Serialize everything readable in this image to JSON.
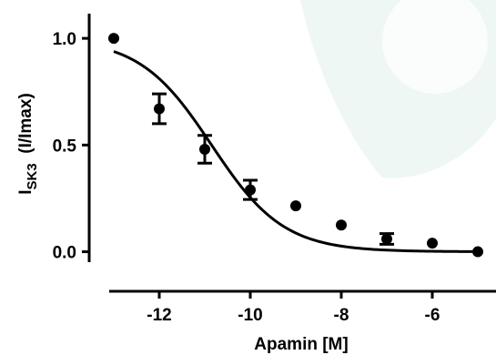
{
  "chart_data": {
    "type": "scatter",
    "xlabel": "Apamin [M]",
    "ylabel": "I",
    "ylabel_sub": "SK3",
    "ylabel_suffix": "(I/Imax)",
    "xlim": [
      -13.4,
      -4.6
    ],
    "ylim": [
      -0.1,
      1.12
    ],
    "x_ticks": [
      -12,
      -10,
      -8,
      -6
    ],
    "x_tick_labels": [
      "-12",
      "-10",
      "-8",
      "-6"
    ],
    "y_ticks": [
      0.0,
      0.5,
      1.0
    ],
    "y_tick_labels": [
      "0.0",
      "0.5",
      "1.0"
    ],
    "grid": false,
    "series": [
      {
        "points": [
          {
            "x": -13,
            "y": 1.0,
            "err": 0
          },
          {
            "x": -12,
            "y": 0.67,
            "err": 0.07
          },
          {
            "x": -11,
            "y": 0.48,
            "err": 0.065
          },
          {
            "x": -10,
            "y": 0.29,
            "err": 0.045
          },
          {
            "x": -9,
            "y": 0.215,
            "err": 0
          },
          {
            "x": -8,
            "y": 0.125,
            "err": 0
          },
          {
            "x": -7,
            "y": 0.06,
            "err": 0.025
          },
          {
            "x": -6,
            "y": 0.04,
            "err": 0
          },
          {
            "x": -5,
            "y": 0.0,
            "err": 0
          }
        ]
      }
    ],
    "fit": {
      "model": "sigmoidal dose-response",
      "bottom": 0.0,
      "top": 1.0,
      "logIC50": -10.85,
      "hill_slope": -0.55,
      "x_range": [
        -13,
        -5
      ]
    }
  },
  "colors": {
    "ink": "#000000",
    "background_shape": "#eef7f3"
  }
}
